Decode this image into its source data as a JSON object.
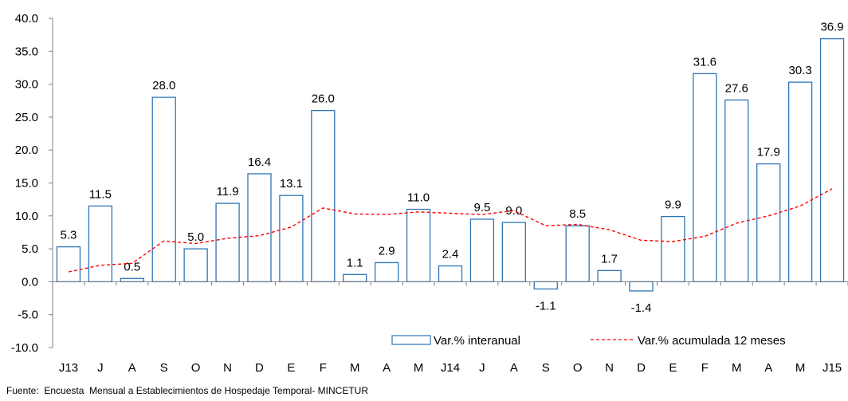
{
  "chart_data": {
    "type": "bar",
    "categories": [
      "J13",
      "J",
      "A",
      "S",
      "O",
      "N",
      "D",
      "E",
      "F",
      "M",
      "A",
      "M",
      "J14",
      "J",
      "A",
      "S",
      "O",
      "N",
      "D",
      "E",
      "F",
      "M",
      "A",
      "M",
      "J15"
    ],
    "series": [
      {
        "name": "Var.% interanual",
        "type": "bar",
        "values": [
          5.3,
          11.5,
          0.5,
          28.0,
          5.0,
          11.9,
          16.4,
          13.1,
          26.0,
          1.1,
          2.9,
          11.0,
          2.4,
          9.5,
          9.0,
          -1.1,
          8.5,
          1.7,
          -1.4,
          9.9,
          31.6,
          27.6,
          17.9,
          30.3,
          36.9
        ],
        "labels": [
          "5.3",
          "11.5",
          "0.5",
          "28.0",
          "5.0",
          "11.9",
          "16.4",
          "13.1",
          "26.0",
          "1.1",
          "2.9",
          "11.0",
          "2.4",
          "9.5",
          "9.0",
          "-1.1",
          "8.5",
          "1.7",
          "-1.4",
          "9.9",
          "31.6",
          "27.6",
          "17.9",
          "30.3",
          "36.9"
        ],
        "color": "#2E75B6"
      },
      {
        "name": "Var.% acumulada 12 meses",
        "type": "line",
        "style": "dashed",
        "values": [
          1.5,
          2.5,
          2.8,
          6.2,
          5.8,
          6.6,
          7.0,
          8.3,
          11.2,
          10.3,
          10.2,
          10.6,
          10.4,
          10.2,
          10.8,
          8.5,
          8.7,
          7.9,
          6.3,
          6.1,
          6.9,
          8.9,
          10.0,
          11.5,
          14.1
        ],
        "color": "#FF0000"
      }
    ],
    "ylim": [
      -10.0,
      40.0
    ],
    "yticks": [
      "-10.0",
      "-5.0",
      "0.0",
      "5.0",
      "10.0",
      "15.0",
      "20.0",
      "25.0",
      "30.0",
      "35.0",
      "40.0"
    ],
    "ytick_values": [
      -10,
      -5,
      0,
      5,
      10,
      15,
      20,
      25,
      30,
      35,
      40
    ],
    "legend_position": "bottom-right",
    "grid": false,
    "source": "Fuente:  Encuesta  Mensual a Establecimientos de Hospedaje Temporal- MINCETUR"
  }
}
